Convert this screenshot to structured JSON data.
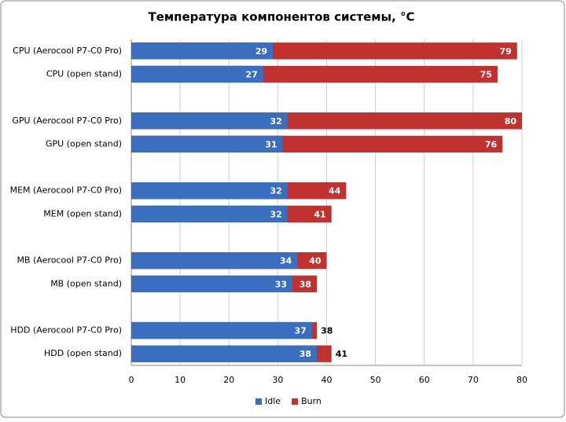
{
  "chart_data": {
    "type": "bar",
    "title": "Температура компонентов системы, °C",
    "categories": [
      "CPU (Aerocool P7-C0 Pro)",
      "CPU (open stand)",
      null,
      "GPU (Aerocool P7-C0 Pro)",
      "GPU (open stand)",
      null,
      "MEM (Aerocool P7-C0 Pro)",
      "MEM (open stand)",
      null,
      "MB (Aerocool P7-C0 Pro)",
      "MB (open stand)",
      null,
      "HDD (Aerocool P7-C0 Pro)",
      "HDD (open stand)"
    ],
    "series": [
      {
        "name": "Burn",
        "color": "#c0312f",
        "values": [
          79,
          75,
          null,
          80,
          76,
          null,
          44,
          41,
          null,
          40,
          38,
          null,
          38,
          41
        ]
      },
      {
        "name": "Idle",
        "color": "#3a6fbf",
        "values": [
          29,
          27,
          null,
          32,
          31,
          null,
          32,
          32,
          null,
          34,
          33,
          null,
          37,
          38
        ]
      }
    ],
    "xlim": [
      0,
      80
    ],
    "xticks": [
      0,
      10,
      20,
      30,
      40,
      50,
      60,
      70,
      80
    ],
    "grid": true,
    "legend": "bottom"
  }
}
